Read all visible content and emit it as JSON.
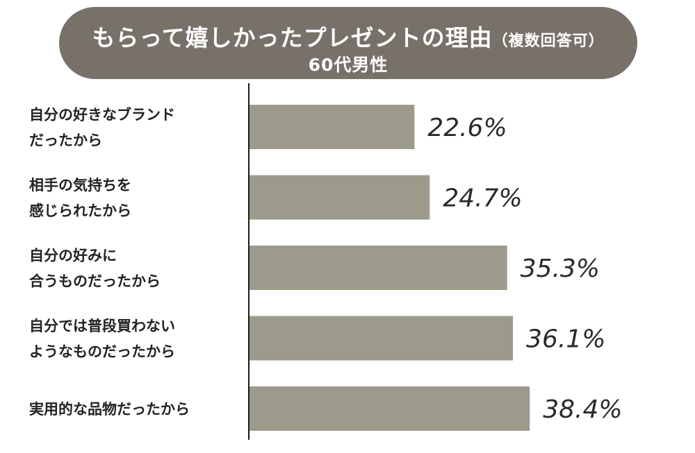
{
  "header": {
    "title": "もらって嬉しかったプレゼントの理由",
    "title_suffix": "（複数回答可）",
    "subtitle": "60代男性"
  },
  "colors": {
    "bar": "#9c9b8b",
    "title_bg": "#77716a",
    "axis": "#1a1a1a"
  },
  "chart_data": {
    "type": "bar",
    "orientation": "horizontal",
    "title": "もらって嬉しかったプレゼントの理由（複数回答可） 60代男性",
    "categories": [
      [
        "自分の好きなブランド",
        "だったから"
      ],
      [
        "相手の気持ちを",
        "感じられたから"
      ],
      [
        "自分の好みに",
        "合うものだったから"
      ],
      [
        "自分では普段買わない",
        "ようなものだったから"
      ],
      [
        "実用的な品物だったから"
      ]
    ],
    "values": [
      22.6,
      24.7,
      35.3,
      36.1,
      38.4
    ],
    "value_labels": [
      "22.6%",
      "24.7%",
      "35.3%",
      "36.1%",
      "38.4%"
    ],
    "unit": "%",
    "xlim": [
      0,
      60
    ],
    "grid": false,
    "legend": "none"
  }
}
